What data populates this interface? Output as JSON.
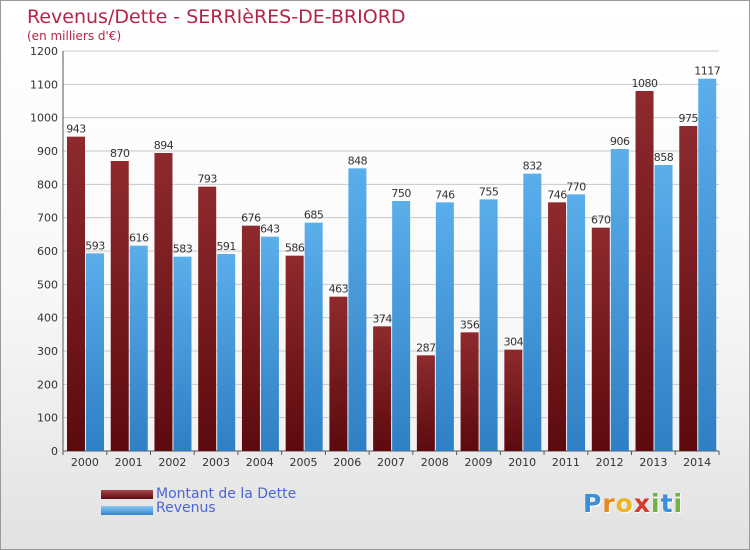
{
  "header": {
    "title": "Revenus/Dette - SERRIèRES-DE-BRIORD",
    "subtitle": "(en milliers d'€)"
  },
  "chart_data": {
    "type": "bar",
    "title": "Revenus/Dette - SERRIèRES-DE-BRIORD",
    "subtitle": "(en milliers d'€)",
    "categories": [
      "2000",
      "2001",
      "2002",
      "2003",
      "2004",
      "2005",
      "2006",
      "2007",
      "2008",
      "2009",
      "2010",
      "2011",
      "2012",
      "2013",
      "2014"
    ],
    "series": [
      {
        "name": "Montant de la Dette",
        "color": "#7a1418",
        "values": [
          943,
          870,
          894,
          793,
          676,
          586,
          463,
          374,
          287,
          356,
          304,
          746,
          670,
          1080,
          975
        ]
      },
      {
        "name": "Revenus",
        "color": "#4a9fe0",
        "values": [
          593,
          616,
          583,
          591,
          643,
          685,
          848,
          750,
          746,
          755,
          832,
          770,
          906,
          858,
          1117
        ]
      }
    ],
    "y_ticks": [
      0,
      100,
      200,
      300,
      400,
      500,
      600,
      700,
      800,
      900,
      1000,
      1100,
      1200
    ],
    "ylim": [
      0,
      1200
    ],
    "grid": true,
    "legend_position": "bottom-left"
  },
  "legend": {
    "items": [
      {
        "label": "Montant de la Dette",
        "color": "#7a1418"
      },
      {
        "label": "Revenus",
        "color": "#4a9fe0"
      }
    ]
  },
  "logo": {
    "letters": [
      "P",
      "r",
      "o",
      "x",
      "i",
      "t",
      "i"
    ],
    "colors": [
      "#3b8fd6",
      "#e88a1c",
      "#f0b323",
      "#d63a2a",
      "#6cb33f",
      "#3b8fd6",
      "#6cb33f"
    ]
  }
}
